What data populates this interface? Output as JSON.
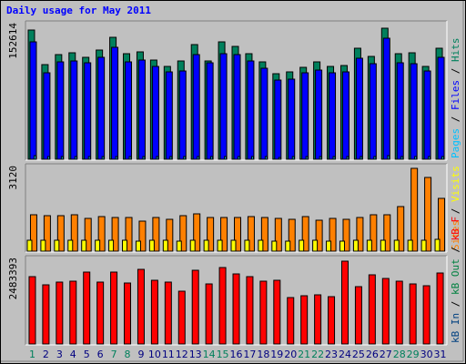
{
  "chart_data": {
    "type": "bar",
    "title": "Daily usage for May 2011",
    "categories": [
      "1",
      "2",
      "3",
      "4",
      "5",
      "6",
      "7",
      "8",
      "9",
      "10",
      "11",
      "12",
      "13",
      "14",
      "15",
      "16",
      "17",
      "18",
      "19",
      "20",
      "21",
      "22",
      "23",
      "24",
      "25",
      "26",
      "27",
      "28",
      "29",
      "30",
      "31"
    ],
    "weekend_days": [
      "1",
      "7",
      "8",
      "14",
      "15",
      "21",
      "22",
      "28",
      "29"
    ],
    "colors": {
      "hits": "#00805c",
      "files": "#0000ff",
      "pages": "#00c0ff",
      "visits": "#ffff00",
      "sites": "#ff8000",
      "kb_in": "#004080",
      "kb_out": "#008040",
      "kb_f": "#ff0000",
      "title": "#0000ff",
      "weekday_label": "#000080",
      "weekend_label": "#00805c"
    },
    "panels": [
      {
        "name": "hits-files-pages",
        "ymax_label": "152614",
        "ylim": [
          0,
          160000
        ],
        "legend": [
          {
            "key": "pages",
            "label": "Pages"
          },
          {
            "key": "files",
            "label": "Files"
          },
          {
            "key": "hits",
            "label": "Hits"
          }
        ],
        "series": [
          {
            "name": "Hits",
            "key": "hits",
            "values": [
              152614,
              111500,
              124000,
              126000,
              120500,
              129000,
              143500,
              125000,
              126500,
              117000,
              110000,
              115500,
              135000,
              116500,
              138000,
              133000,
              125000,
              115000,
              101000,
              103000,
              108500,
              114500,
              109500,
              111000,
              130500,
              121500,
              155000,
              125000,
              126000,
              110000,
              131000
            ]
          },
          {
            "name": "Files",
            "key": "files",
            "values": [
              138000,
              102000,
              115000,
              116500,
              114000,
              120000,
              132000,
              114500,
              117500,
              109000,
              103000,
              104500,
              124000,
              113500,
              125000,
              124000,
              115500,
              107000,
              93000,
              94000,
              102000,
              105500,
              102500,
              103000,
              119000,
              112500,
              143000,
              114000,
              113000,
              104000,
              120000
            ]
          },
          {
            "name": "Pages",
            "key": "pages",
            "values": [
              3800,
              3000,
              3200,
              3400,
              3100,
              3300,
              3600,
              3200,
              3300,
              3000,
              2800,
              2900,
              3400,
              3000,
              3500,
              3300,
              3100,
              2900,
              2600,
              2700,
              2800,
              3000,
              2800,
              2900,
              3300,
              3100,
              3900,
              3200,
              3200,
              2800,
              3300
            ]
          }
        ]
      },
      {
        "name": "visits-sites",
        "ymax_label": "3120",
        "ylim": [
          0,
          3200
        ],
        "legend": [
          {
            "key": "sites",
            "label": "Sites"
          },
          {
            "key": "visits",
            "label": "Visits"
          }
        ],
        "series": [
          {
            "name": "Visits",
            "key": "visits",
            "values": [
              410,
              400,
              410,
              400,
              400,
              400,
              400,
              400,
              390,
              400,
              400,
              390,
              410,
              400,
              400,
              400,
              400,
              400,
              390,
              390,
              400,
              400,
              390,
              390,
              400,
              400,
              410,
              420,
              420,
              430,
              440
            ]
          },
          {
            "name": "Sites",
            "key": "sites",
            "values": [
              1380,
              1330,
              1350,
              1360,
              1250,
              1320,
              1290,
              1280,
              1150,
              1290,
              1200,
              1330,
              1410,
              1290,
              1280,
              1290,
              1300,
              1270,
              1250,
              1190,
              1300,
              1160,
              1240,
              1200,
              1290,
              1370,
              1360,
              1700,
              3120,
              2800,
              1990
            ]
          }
        ]
      },
      {
        "name": "kbf-kbout-kbin",
        "ymax_label": "2483393",
        "ylim": [
          0,
          2550000
        ],
        "legend": [
          {
            "key": "kb_in",
            "label": "kB In"
          },
          {
            "key": "kb_out",
            "label": "kB Out"
          },
          {
            "key": "kb_f",
            "label": "kB F"
          }
        ],
        "series": [
          {
            "name": "kB F",
            "key": "kb_f",
            "values": [
              2000000,
              1750000,
              1850000,
              1880000,
              2150000,
              1850000,
              2130000,
              1830000,
              2230000,
              1910000,
              1850000,
              1580000,
              2190000,
              1780000,
              2280000,
              2080000,
              2010000,
              1880000,
              1900000,
              1380000,
              1430000,
              1460000,
              1420000,
              2480000,
              1700000,
              2060000,
              1960000,
              1860000,
              1800000,
              1740000,
              2110000
            ]
          },
          {
            "name": "kB Out",
            "key": "kb_out",
            "values": [
              0,
              0,
              0,
              0,
              0,
              0,
              0,
              0,
              0,
              0,
              0,
              0,
              0,
              0,
              0,
              0,
              0,
              0,
              0,
              0,
              0,
              0,
              0,
              0,
              0,
              0,
              0,
              0,
              0,
              0,
              0
            ]
          },
          {
            "name": "kB In",
            "key": "kb_in",
            "values": [
              0,
              0,
              0,
              0,
              0,
              0,
              0,
              0,
              0,
              0,
              0,
              0,
              0,
              0,
              0,
              0,
              0,
              0,
              0,
              0,
              0,
              0,
              0,
              0,
              0,
              0,
              0,
              0,
              0,
              0,
              0
            ]
          }
        ]
      }
    ]
  }
}
